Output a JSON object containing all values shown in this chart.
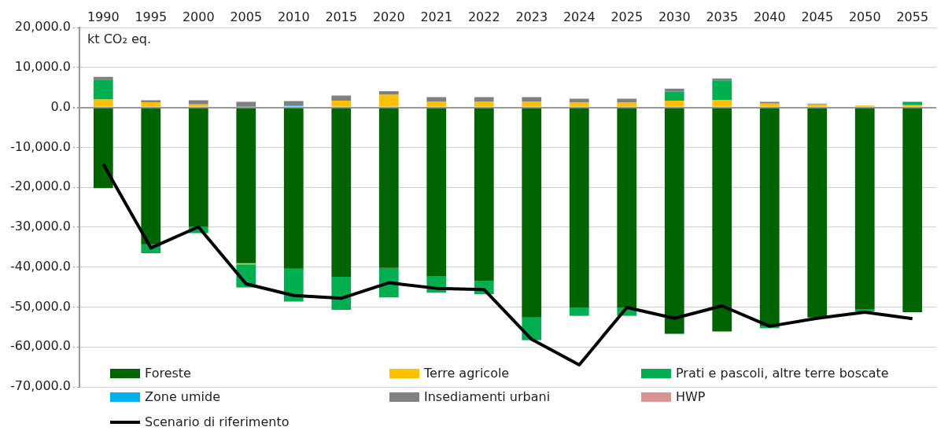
{
  "chart_data": {
    "type": "bar",
    "stacked": true,
    "ylabel": "kt CO₂ eq.",
    "categories": [
      "1990",
      "1995",
      "2000",
      "2005",
      "2010",
      "2015",
      "2020",
      "2021",
      "2022",
      "2023",
      "2024",
      "2025",
      "2030",
      "2035",
      "2040",
      "2045",
      "2050",
      "2055"
    ],
    "series": [
      {
        "name": "Foreste",
        "color": "#006400",
        "values": [
          -20200,
          -34300,
          -29900,
          -39000,
          -40400,
          -42400,
          -40200,
          -42300,
          -43500,
          -52600,
          -50100,
          -50100,
          -56700,
          -56100,
          -54800,
          -52600,
          -50500,
          -51300
        ]
      },
      {
        "name": "Terre agricole",
        "color": "#ffc000",
        "values": [
          2000,
          1300,
          800,
          -300,
          300,
          1700,
          3200,
          1500,
          1500,
          1500,
          1200,
          1200,
          1700,
          1800,
          1000,
          800,
          500,
          600
        ]
      },
      {
        "name": "Prati e pascoli, altre terre boscate",
        "color": "#00b050",
        "values": [
          5000,
          -2200,
          -1600,
          -5800,
          -8200,
          -8300,
          -7400,
          -4100,
          -3300,
          -5700,
          -2100,
          -2100,
          2300,
          5000,
          -500,
          null,
          -600,
          800
        ]
      },
      {
        "name": "Zone umide",
        "color": "#00b0f0",
        "values": [
          0,
          0,
          0,
          0,
          200,
          200,
          0,
          0,
          0,
          0,
          0,
          0,
          0,
          0,
          0,
          0,
          0,
          0
        ]
      },
      {
        "name": "Insediamenti urbani",
        "color": "#808080",
        "values": [
          700,
          500,
          1000,
          1400,
          1100,
          1100,
          900,
          1100,
          1100,
          1100,
          1000,
          1000,
          700,
          500,
          400,
          200,
          0,
          0
        ]
      },
      {
        "name": "HWP",
        "color": "#d99594",
        "values": [
          0,
          0,
          0,
          0,
          0,
          0,
          0,
          0,
          0,
          0,
          0,
          0,
          0,
          0,
          0,
          0,
          0,
          0
        ]
      },
      {
        "name": "Scenario di riferimento",
        "type": "line",
        "color": "#000000",
        "marker": "none",
        "values": [
          -14200,
          -35200,
          -29900,
          -44200,
          -47100,
          -47800,
          -43900,
          -45300,
          -45600,
          -58100,
          -64500,
          -50100,
          -52800,
          -49700,
          -54800,
          -52800,
          -51300,
          -52900
        ]
      }
    ],
    "ylim": [
      -70000,
      20000
    ],
    "yticks": [
      {
        "value": -70000,
        "label": "-70,000.0"
      },
      {
        "value": -60000,
        "label": "-60,000.0"
      },
      {
        "value": -50000,
        "label": "-50,000.0"
      },
      {
        "value": -40000,
        "label": "-40,000.0"
      },
      {
        "value": -30000,
        "label": "-30,000.0"
      },
      {
        "value": -20000,
        "label": "-20,000.0"
      },
      {
        "value": -10000,
        "label": "-10,000.0"
      },
      {
        "value": 0,
        "label": "0.0"
      },
      {
        "value": 10000,
        "label": "10,000.0"
      },
      {
        "value": 20000,
        "label": "20,000.0"
      }
    ],
    "grid": "y",
    "legend": "bottom"
  }
}
